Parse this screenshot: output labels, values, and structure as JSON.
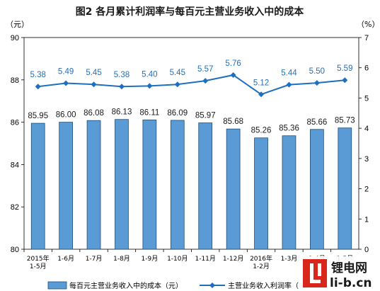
{
  "chart_data": {
    "type": "bar+line",
    "title": "图2  各月累计利润率与每百元主营业务收入中的成本",
    "left_unit": "（元）",
    "right_unit": "（%）",
    "categories": [
      [
        "2015年",
        "1-5月"
      ],
      [
        "1-6月"
      ],
      [
        "1-7月"
      ],
      [
        "1-8月"
      ],
      [
        "1-9月"
      ],
      [
        "1-10月"
      ],
      [
        "1-11月"
      ],
      [
        "1-12月"
      ],
      [
        "2016年",
        "1-2月"
      ],
      [
        "1-3月"
      ],
      [
        "1-4月"
      ],
      [
        "1-5月"
      ]
    ],
    "left_axis": {
      "ylim": [
        80,
        90
      ],
      "ticks": [
        "80",
        "82",
        "84",
        "86",
        "88",
        "90"
      ]
    },
    "right_axis": {
      "ylim": [
        0,
        7
      ],
      "ticks": [
        "0",
        "1",
        "2",
        "3",
        "4",
        "5",
        "6",
        "7"
      ]
    },
    "series": [
      {
        "name": "每百元主营业务收入中的成本（元）",
        "kind": "bar",
        "axis": "left",
        "values": [
          85.95,
          86.0,
          86.08,
          86.13,
          86.11,
          86.09,
          85.97,
          85.68,
          85.26,
          85.36,
          85.66,
          85.73
        ],
        "labels": [
          "85.95",
          "86.00",
          "86.08",
          "86.13",
          "86.11",
          "86.09",
          "85.97",
          "85.68",
          "85.26",
          "85.36",
          "85.66",
          "85.73"
        ]
      },
      {
        "name": "主营业务收入利润率（%）",
        "kind": "line",
        "axis": "right",
        "values": [
          5.38,
          5.49,
          5.45,
          5.38,
          5.4,
          5.45,
          5.57,
          5.76,
          5.12,
          5.44,
          5.5,
          5.59
        ],
        "labels": [
          "5.38",
          "5.49",
          "5.45",
          "5.38",
          "5.40",
          "5.45",
          "5.57",
          "5.76",
          "5.12",
          "5.44",
          "5.50",
          "5.59"
        ]
      }
    ],
    "colors": {
      "bar_fill": "#5b9bd5",
      "bar_stroke": "#1f4e79",
      "line": "#1f6fbf",
      "title": "#1a1a1a"
    }
  },
  "watermark": {
    "logo_text": "锂电网",
    "logo_url_text": "li-b.cn"
  }
}
